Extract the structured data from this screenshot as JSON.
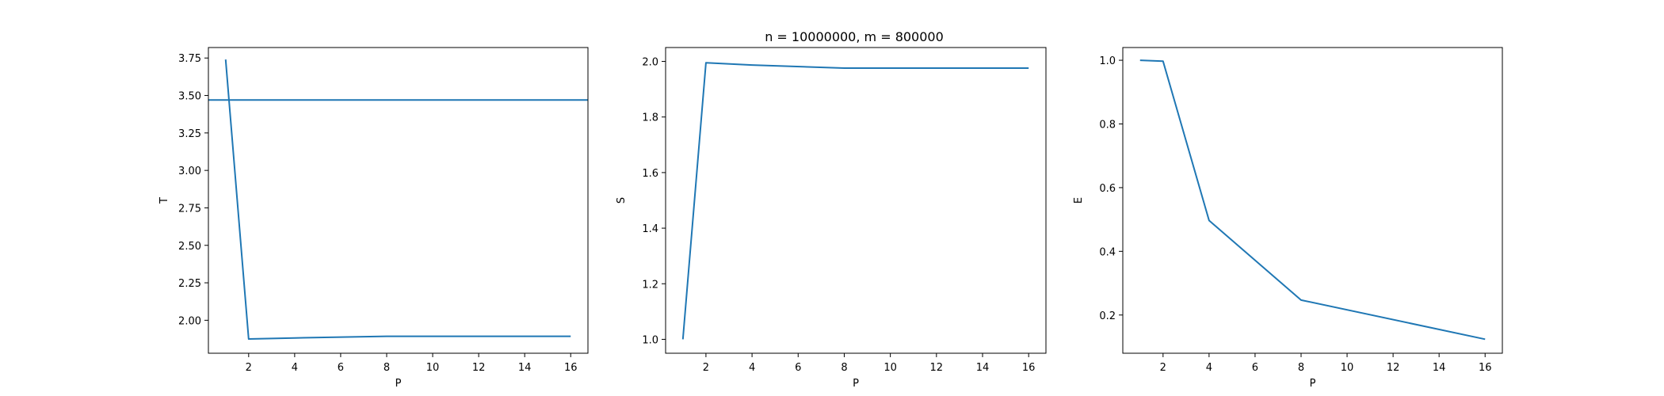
{
  "figure": {
    "suptitle": "n = 10000000, m = 800000"
  },
  "chart_data": [
    {
      "type": "line",
      "title": "",
      "xlabel": "P",
      "ylabel": "T",
      "xlim": [
        0.25,
        16.75
      ],
      "ylim": [
        1.78,
        3.82
      ],
      "xticks": [
        2,
        4,
        6,
        8,
        10,
        12,
        14,
        16
      ],
      "xtick_labels": [
        "2",
        "4",
        "6",
        "8",
        "10",
        "12",
        "14",
        "16"
      ],
      "yticks": [
        2.0,
        2.25,
        2.5,
        2.75,
        3.0,
        3.25,
        3.5,
        3.75
      ],
      "ytick_labels": [
        "2.00",
        "2.25",
        "2.50",
        "2.75",
        "3.00",
        "3.25",
        "3.50",
        "3.75"
      ],
      "grid": false,
      "series": [
        {
          "x": [
            1,
            2,
            4,
            8,
            16
          ],
          "y": [
            3.74,
            1.875,
            1.882,
            1.893,
            1.893
          ],
          "color": "#1f77b4"
        }
      ],
      "hlines": [
        {
          "y": 3.47,
          "color": "#1f77b4"
        }
      ]
    },
    {
      "type": "line",
      "title": "",
      "xlabel": "P",
      "ylabel": "S",
      "xlim": [
        0.25,
        16.75
      ],
      "ylim": [
        0.95,
        2.05
      ],
      "xticks": [
        2,
        4,
        6,
        8,
        10,
        12,
        14,
        16
      ],
      "xtick_labels": [
        "2",
        "4",
        "6",
        "8",
        "10",
        "12",
        "14",
        "16"
      ],
      "yticks": [
        1.0,
        1.2,
        1.4,
        1.6,
        1.8,
        2.0
      ],
      "ytick_labels": [
        "1.0",
        "1.2",
        "1.4",
        "1.6",
        "1.8",
        "2.0"
      ],
      "grid": false,
      "series": [
        {
          "x": [
            1,
            2,
            4,
            8,
            16
          ],
          "y": [
            1.0,
            1.995,
            1.987,
            1.976,
            1.976
          ],
          "color": "#1f77b4"
        }
      ]
    },
    {
      "type": "line",
      "title": "",
      "xlabel": "P",
      "ylabel": "E",
      "xlim": [
        0.25,
        16.75
      ],
      "ylim": [
        0.08,
        1.04
      ],
      "xticks": [
        2,
        4,
        6,
        8,
        10,
        12,
        14,
        16
      ],
      "xtick_labels": [
        "2",
        "4",
        "6",
        "8",
        "10",
        "12",
        "14",
        "16"
      ],
      "yticks": [
        0.2,
        0.4,
        0.6,
        0.8,
        1.0
      ],
      "ytick_labels": [
        "0.2",
        "0.4",
        "0.6",
        "0.8",
        "1.0"
      ],
      "grid": false,
      "series": [
        {
          "x": [
            1,
            2,
            4,
            8,
            16
          ],
          "y": [
            1.0,
            0.997,
            0.497,
            0.247,
            0.124
          ],
          "color": "#1f77b4"
        }
      ]
    }
  ]
}
